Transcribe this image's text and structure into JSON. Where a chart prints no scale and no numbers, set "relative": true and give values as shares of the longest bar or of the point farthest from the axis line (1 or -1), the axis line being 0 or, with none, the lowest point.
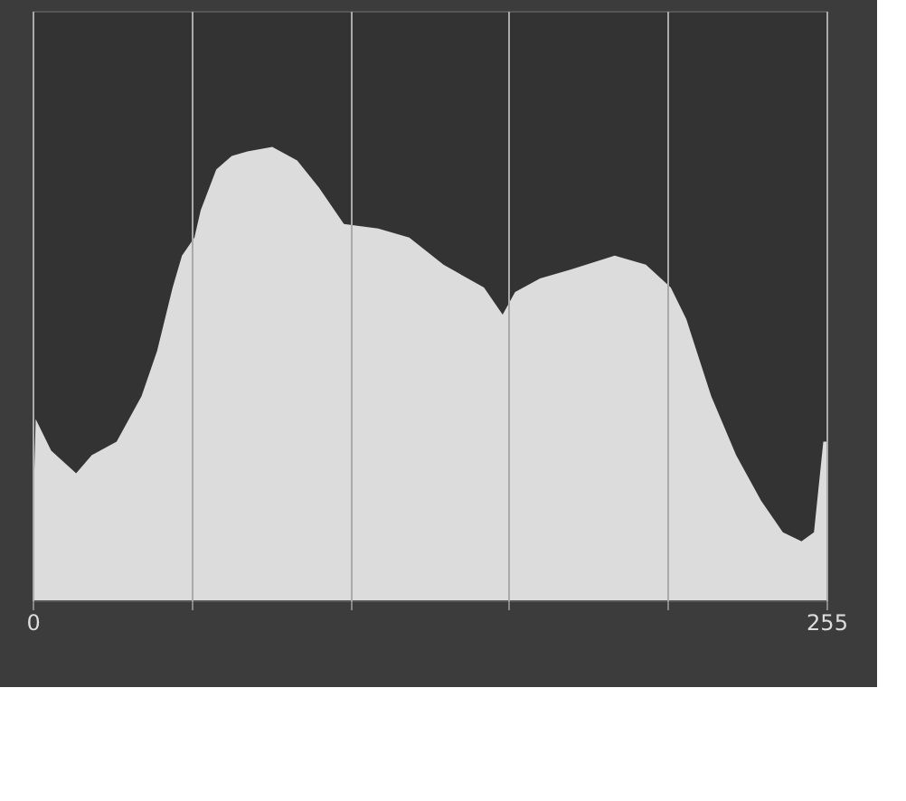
{
  "chart_data": {
    "type": "area",
    "relative": true,
    "x": [
      0,
      1,
      6,
      14,
      19,
      27,
      35,
      40,
      45,
      48,
      52,
      54,
      59,
      64,
      69,
      77,
      85,
      92,
      100,
      111,
      121,
      132,
      145,
      151,
      155,
      163,
      173,
      187,
      197,
      205,
      210,
      218,
      226,
      234,
      241,
      247,
      251,
      254,
      255
    ],
    "series": [
      {
        "color": "#dcdcdc",
        "values": [
          0.13,
          0.4,
          0.33,
          0.28,
          0.32,
          0.35,
          0.45,
          0.55,
          0.69,
          0.76,
          0.8,
          0.86,
          0.95,
          0.98,
          0.99,
          1.0,
          0.97,
          0.91,
          0.83,
          0.82,
          0.8,
          0.74,
          0.69,
          0.63,
          0.68,
          0.71,
          0.73,
          0.76,
          0.74,
          0.69,
          0.62,
          0.45,
          0.32,
          0.22,
          0.15,
          0.13,
          0.15,
          0.35,
          0.35
        ]
      }
    ],
    "xlim": [
      0,
      255
    ],
    "xticks": [
      0,
      {
        "value": 51,
        "label": null
      },
      {
        "value": 102,
        "label": null
      },
      {
        "value": 153,
        "label": null
      },
      {
        "value": 204,
        "label": null
      },
      255
    ],
    "grid": "x"
  }
}
